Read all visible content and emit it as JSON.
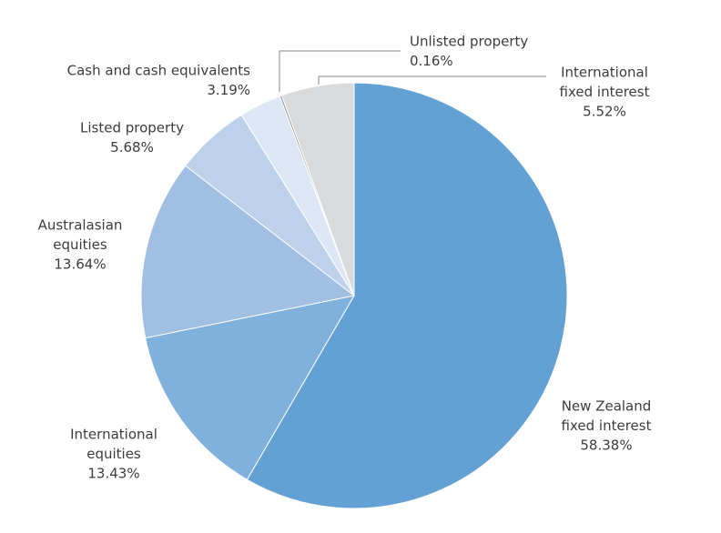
{
  "chart_data": {
    "type": "pie",
    "categories": [
      [
        "New Zealand",
        "fixed interest"
      ],
      [
        "International",
        "equities"
      ],
      [
        "Australasian",
        "equities"
      ],
      [
        "Listed property"
      ],
      [
        "Cash and cash equivalents"
      ],
      [
        "Unlisted property"
      ],
      [
        "International",
        "fixed interest"
      ]
    ],
    "values": [
      58.38,
      13.43,
      13.64,
      5.68,
      3.19,
      0.16,
      5.52
    ],
    "value_labels": [
      "58.38%",
      "13.43%",
      "13.64%",
      "5.68%",
      "3.19%",
      "0.16%",
      "5.52%"
    ],
    "colors": [
      "#63a0d3",
      "#80b0dc",
      "#a0bfe3",
      "#bed1ea",
      "#dce6f5",
      "#9a9a9a",
      "#d9dadc"
    ]
  }
}
